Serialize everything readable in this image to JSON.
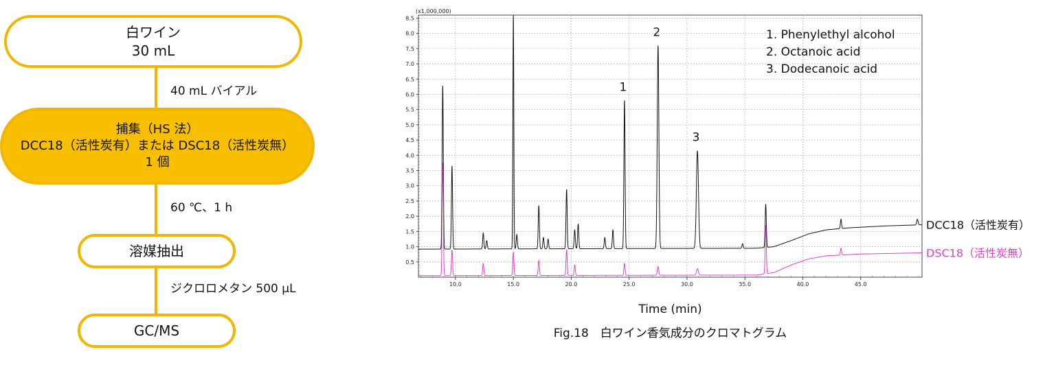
{
  "flow": {
    "node1": {
      "line1": "白ワイン",
      "line2": "30 mL"
    },
    "step1": "40 mL バイアル",
    "node2": {
      "line1": "捕集（HS 法）",
      "line2": "DCC18（活性炭有）または DSC18（活性炭無）",
      "line3": "1 個"
    },
    "step2": "60 ℃、1 h",
    "node3": {
      "line1": "溶媒抽出"
    },
    "step3": "ジクロロメタン 500 μL",
    "node4": {
      "line1": "GC/MS"
    },
    "colors": {
      "border": "#F2B600",
      "fill": "#F8BF00"
    }
  },
  "chart_data": {
    "type": "line",
    "title": "Fig.18　白ワイン香気成分のクロマトグラム",
    "xlabel": "Time (min)",
    "ylabel": "",
    "y_multiplier_label": "(x1,000,000)",
    "xlim": [
      6.8,
      50.3
    ],
    "ylim": [
      0,
      8.6
    ],
    "x_ticks": [
      10,
      15,
      20,
      25,
      30,
      35,
      40,
      45
    ],
    "x_tick_labels": [
      "10.0",
      "15.0",
      "20.0",
      "25.0",
      "30.0",
      "35.0",
      "40.0",
      "45.0"
    ],
    "y_ticks": [
      0.5,
      1.0,
      1.5,
      2.0,
      2.5,
      3.0,
      3.5,
      4.0,
      4.5,
      5.0,
      5.5,
      6.0,
      6.5,
      7.0,
      7.5,
      8.0,
      8.5
    ],
    "y_tick_labels": [
      "0.5",
      "1.0",
      "1.5",
      "2.0",
      "2.5",
      "3.0",
      "3.5",
      "4.0",
      "4.5",
      "5.0",
      "5.5",
      "6.0",
      "6.5",
      "7.0",
      "7.5",
      "8.0",
      "8.5"
    ],
    "grid": true,
    "legend_placement": "top-right",
    "legend": [
      "1. Phenylethyl alcohol",
      "2. Octanoic acid",
      "3. Dodecanoic acid"
    ],
    "peak_labels": [
      {
        "label": "1",
        "x": 24.6,
        "y": 5.8
      },
      {
        "label": "2",
        "x": 27.5,
        "y": 7.6
      },
      {
        "label": "3",
        "x": 30.9,
        "y": 4.15
      }
    ],
    "series": [
      {
        "name": "DCC18（活性炭有）",
        "color": "#111111",
        "baseline": [
          [
            6.8,
            0.92
          ],
          [
            36.0,
            0.95
          ],
          [
            37.5,
            1.0
          ],
          [
            39.0,
            1.2
          ],
          [
            40.5,
            1.42
          ],
          [
            42.0,
            1.55
          ],
          [
            44.0,
            1.62
          ],
          [
            47.0,
            1.68
          ],
          [
            50.3,
            1.72
          ]
        ],
        "peaks": [
          [
            8.9,
            6.28,
            0.05
          ],
          [
            9.7,
            3.65,
            0.05
          ],
          [
            12.4,
            1.45,
            0.05
          ],
          [
            12.7,
            1.2,
            0.05
          ],
          [
            15.0,
            8.6,
            0.04
          ],
          [
            15.3,
            1.4,
            0.05
          ],
          [
            17.2,
            2.35,
            0.05
          ],
          [
            17.6,
            1.3,
            0.05
          ],
          [
            18.0,
            1.25,
            0.05
          ],
          [
            19.6,
            2.88,
            0.05
          ],
          [
            20.3,
            1.55,
            0.05
          ],
          [
            20.6,
            1.75,
            0.05
          ],
          [
            22.9,
            1.3,
            0.05
          ],
          [
            23.6,
            1.55,
            0.05
          ],
          [
            24.6,
            5.8,
            0.05
          ],
          [
            27.5,
            7.6,
            0.07
          ],
          [
            30.9,
            4.15,
            0.09
          ],
          [
            34.8,
            1.1,
            0.05
          ],
          [
            36.8,
            2.4,
            0.05
          ],
          [
            43.3,
            1.9,
            0.05
          ],
          [
            49.9,
            1.9,
            0.06
          ]
        ],
        "end_label": "DCC18（活性炭有）"
      },
      {
        "name": "DSC18（活性炭無）",
        "color": "#E040C8",
        "baseline": [
          [
            6.8,
            0.05
          ],
          [
            36.0,
            0.07
          ],
          [
            37.5,
            0.15
          ],
          [
            39.0,
            0.4
          ],
          [
            40.5,
            0.6
          ],
          [
            42.0,
            0.7
          ],
          [
            45.0,
            0.76
          ],
          [
            50.3,
            0.8
          ]
        ],
        "peaks": [
          [
            8.9,
            3.75,
            0.05
          ],
          [
            9.7,
            0.9,
            0.05
          ],
          [
            12.4,
            0.45,
            0.05
          ],
          [
            15.0,
            0.82,
            0.05
          ],
          [
            17.2,
            0.55,
            0.05
          ],
          [
            19.6,
            0.9,
            0.05
          ],
          [
            20.3,
            0.4,
            0.05
          ],
          [
            24.6,
            0.45,
            0.05
          ],
          [
            27.5,
            0.35,
            0.06
          ],
          [
            30.9,
            0.28,
            0.08
          ],
          [
            36.8,
            1.7,
            0.05
          ],
          [
            43.3,
            0.95,
            0.05
          ]
        ],
        "end_label": "DSC18（活性炭無）"
      }
    ]
  }
}
